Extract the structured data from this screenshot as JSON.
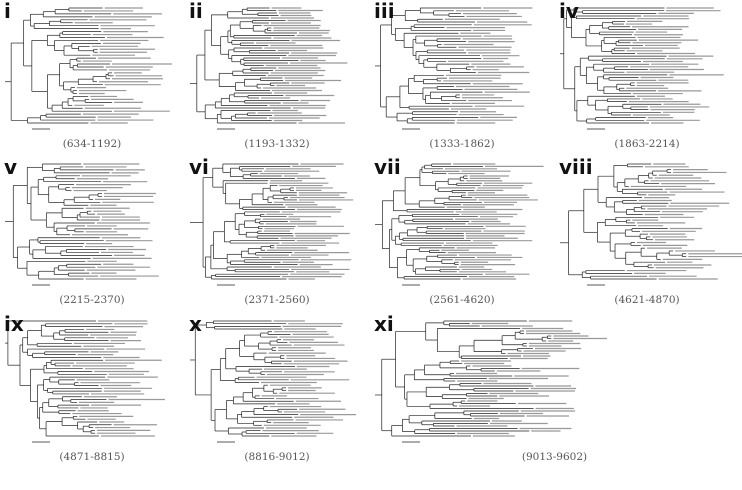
{
  "panels": [
    {
      "label": "i",
      "range": "(634-1192)"
    },
    {
      "label": "ii",
      "range": "(1193-1332)"
    },
    {
      "label": "iii",
      "range": "(1333-1862)"
    },
    {
      "label": "iv",
      "range": "(1863-2214)"
    },
    {
      "label": "v",
      "range": "(2215-2370)"
    },
    {
      "label": "vi",
      "range": "(2371-2560)"
    },
    {
      "label": "vii",
      "range": "(2561-4620)"
    },
    {
      "label": "viii",
      "range": "(4621-4870)"
    },
    {
      "label": "ix",
      "range": "(4871-8815)"
    },
    {
      "label": "x",
      "range": "(8816-9012)"
    },
    {
      "label": "xi",
      "range": "(9013-9602)"
    }
  ]
}
